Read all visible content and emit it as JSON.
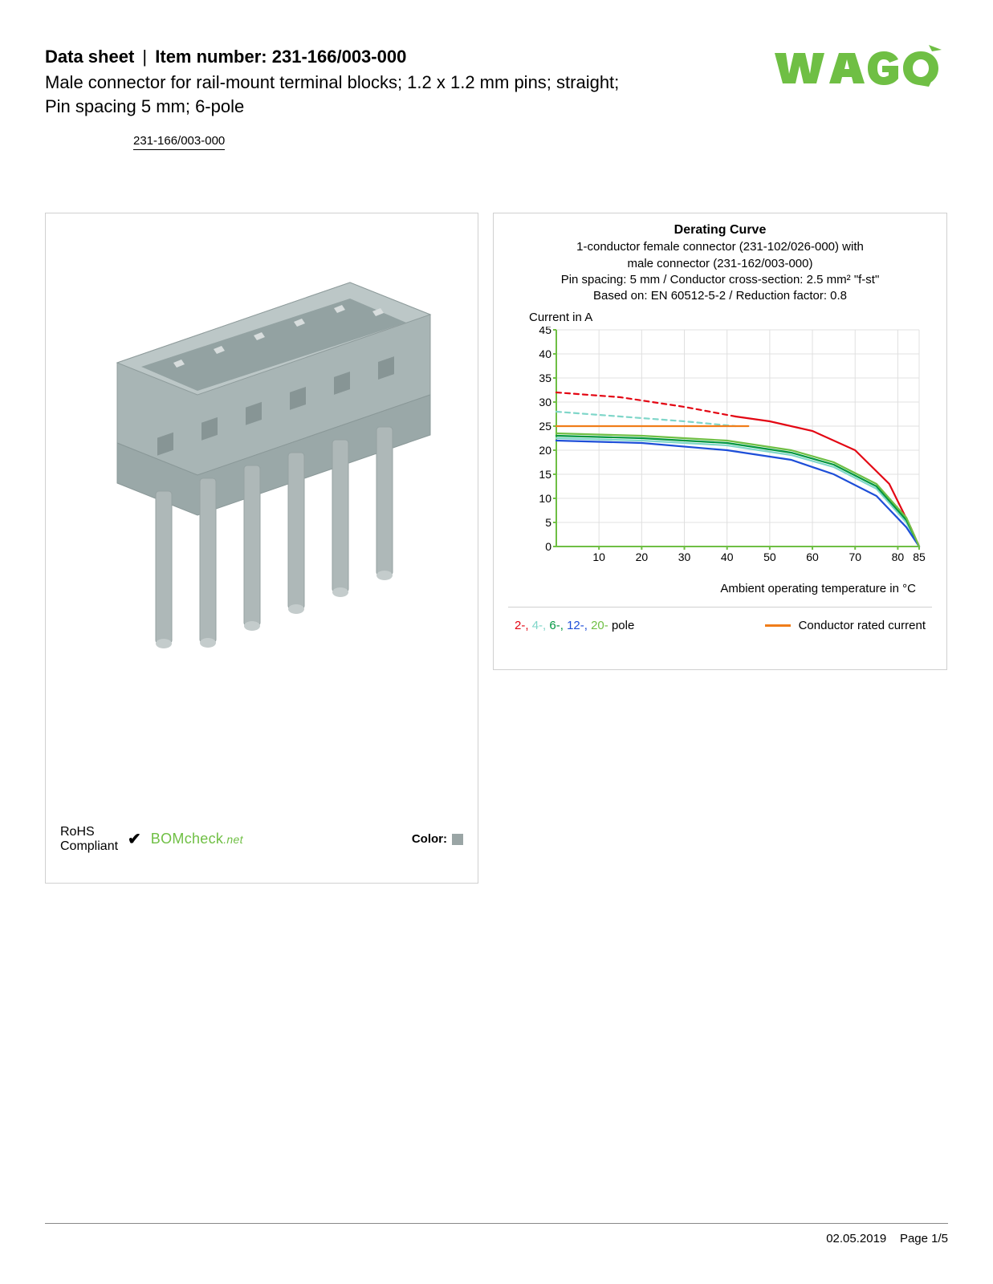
{
  "header": {
    "datasheet_label": "Data sheet",
    "item_label": "Item number:",
    "item_number": "231-166/003-000",
    "description_line1": "Male connector for rail-mount terminal blocks; 1.2 x 1.2 mm pins; straight;",
    "description_line2": "Pin spacing 5 mm; 6-pole",
    "item_link": "231-166/003-000"
  },
  "logo": {
    "text": "WAGO",
    "color": "#6fbf44"
  },
  "product_image": {
    "body_color": "#a8b5b5",
    "pin_color": "#b8bfbf"
  },
  "compliance": {
    "rohs_line1": "RoHS",
    "rohs_line2": "Compliant",
    "bomcheck_main": "BOMcheck",
    "bomcheck_suffix": ".net",
    "bomcheck_color": "#6fbf44",
    "color_label": "Color:",
    "color_swatch": "#9aa5a5"
  },
  "chart": {
    "title": "Derating Curve",
    "sub1": "1-conductor female connector (231-102/026-000) with",
    "sub2": "male connector (231-162/003-000)",
    "sub3": "Pin spacing: 5 mm / Conductor cross-section: 2.5 mm² \"f-st\"",
    "sub4": "Based on: EN 60512-5-2 / Reduction factor: 0.8",
    "ylabel": "Current in A",
    "xlabel": "Ambient operating temperature in °C",
    "type": "line",
    "xlim": [
      0,
      85
    ],
    "ylim": [
      0,
      45
    ],
    "xticks": [
      10,
      20,
      30,
      40,
      50,
      60,
      70,
      80,
      85
    ],
    "yticks": [
      0,
      5,
      10,
      15,
      20,
      25,
      30,
      35,
      40,
      45
    ],
    "background_color": "#ffffff",
    "grid_color": "#e0e0e0",
    "axis_color": "#6fbf44",
    "series": [
      {
        "name": "2-pole-dash",
        "color": "#e30613",
        "dashed": true,
        "points": [
          [
            0,
            32
          ],
          [
            15,
            31
          ],
          [
            30,
            29
          ],
          [
            42,
            27
          ]
        ]
      },
      {
        "name": "2-pole",
        "color": "#e30613",
        "dashed": false,
        "points": [
          [
            42,
            27
          ],
          [
            50,
            26
          ],
          [
            60,
            24
          ],
          [
            70,
            20
          ],
          [
            78,
            13
          ],
          [
            83,
            4
          ],
          [
            85,
            0
          ]
        ]
      },
      {
        "name": "4-pole-dash",
        "color": "#7fd6c9",
        "dashed": true,
        "points": [
          [
            0,
            28
          ],
          [
            15,
            27
          ],
          [
            30,
            26
          ],
          [
            42,
            25
          ]
        ]
      },
      {
        "name": "4-pole",
        "color": "#7fd6c9",
        "dashed": false,
        "points": [
          [
            0,
            22.5
          ],
          [
            20,
            22
          ],
          [
            40,
            21
          ],
          [
            55,
            19
          ],
          [
            65,
            16.5
          ],
          [
            75,
            12
          ],
          [
            82,
            5
          ],
          [
            85,
            0
          ]
        ]
      },
      {
        "name": "6-pole",
        "color": "#009640",
        "dashed": false,
        "points": [
          [
            0,
            23
          ],
          [
            20,
            22.5
          ],
          [
            40,
            21.5
          ],
          [
            55,
            19.5
          ],
          [
            65,
            17
          ],
          [
            75,
            12.5
          ],
          [
            82,
            5.5
          ],
          [
            85,
            0
          ]
        ]
      },
      {
        "name": "12-pole",
        "color": "#1d4ed8",
        "dashed": false,
        "points": [
          [
            0,
            22
          ],
          [
            20,
            21.5
          ],
          [
            40,
            20
          ],
          [
            55,
            18
          ],
          [
            65,
            15
          ],
          [
            75,
            10.5
          ],
          [
            82,
            4
          ],
          [
            85,
            0
          ]
        ]
      },
      {
        "name": "20-pole",
        "color": "#6fbf44",
        "dashed": false,
        "points": [
          [
            0,
            23.5
          ],
          [
            20,
            23
          ],
          [
            40,
            22
          ],
          [
            55,
            20
          ],
          [
            65,
            17.5
          ],
          [
            75,
            13
          ],
          [
            82,
            6
          ],
          [
            85,
            0
          ]
        ]
      },
      {
        "name": "rated",
        "color": "#f07d1a",
        "dashed": false,
        "points": [
          [
            0,
            25
          ],
          [
            45,
            25
          ]
        ]
      }
    ],
    "legend_poles": [
      {
        "label": "2-,",
        "color": "#e30613"
      },
      {
        "label": "4-,",
        "color": "#7fd6c9"
      },
      {
        "label": "6-,",
        "color": "#009640"
      },
      {
        "label": "12-,",
        "color": "#1d4ed8"
      },
      {
        "label": "20-",
        "color": "#6fbf44"
      }
    ],
    "legend_poles_suffix": " pole",
    "legend_rated_label": "Conductor rated current",
    "legend_rated_color": "#f07d1a"
  },
  "footer": {
    "date": "02.05.2019",
    "page": "Page 1/5"
  }
}
